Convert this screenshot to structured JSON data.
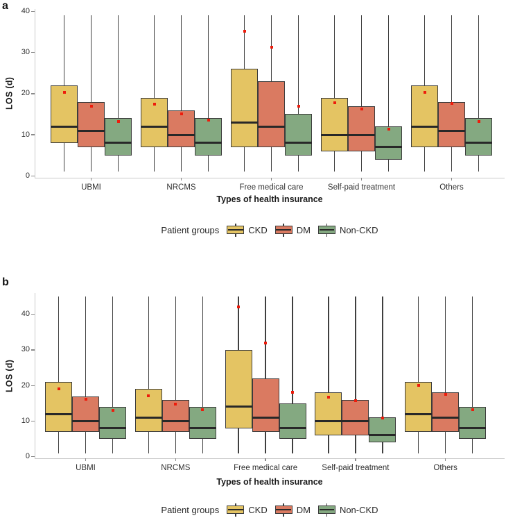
{
  "figure": {
    "panel_a_letter": "a",
    "panel_b_letter": "b",
    "legend": {
      "title": "Patient groups",
      "entries": [
        "CKD",
        "DM",
        "Non-CKD"
      ]
    },
    "colors": {
      "ckd": "#E4C463",
      "dm": "#DA7A61",
      "non_ckd": "#84A981",
      "box_border": "#3C3C3C",
      "median": "#282828",
      "whisker": "#3F3F3F",
      "mean_dot": "#ED1C0C",
      "axis_line": "#C9C9C9",
      "tick_mark": "#8A8A8A",
      "text": "#303030"
    }
  },
  "chart_data": [
    {
      "type": "boxplot",
      "panel": "a",
      "title": "",
      "ylabel": "LOS (d)",
      "xlabel": "Types of health insurance",
      "ylim": [
        0,
        40.6
      ],
      "yticks": [
        0,
        10,
        20,
        30,
        40
      ],
      "grid": false,
      "legend_position": "bottom",
      "legend_title": "Patient groups",
      "legend_entries": [
        "CKD",
        "DM",
        "Non-CKD"
      ],
      "categories": [
        "UBMI",
        "NRCMS",
        "Free medical care",
        "Self-paid treatment",
        "Others"
      ],
      "series": [
        {
          "name": "CKD",
          "color_key": "ckd",
          "boxes": [
            {
              "low": 1,
              "q1": 8,
              "med": 12,
              "q3": 22,
              "high": 39,
              "mean": 20.3
            },
            {
              "low": 1,
              "q1": 7,
              "med": 12,
              "q3": 19,
              "high": 39,
              "mean": 17.4
            },
            {
              "low": 1,
              "q1": 7,
              "med": 13,
              "q3": 26,
              "high": 39,
              "mean": 35.2
            },
            {
              "low": 1,
              "q1": 6,
              "med": 10,
              "q3": 19,
              "high": 39,
              "mean": 17.7
            },
            {
              "low": 1,
              "q1": 7,
              "med": 12,
              "q3": 22,
              "high": 39,
              "mean": 20.3
            }
          ]
        },
        {
          "name": "DM",
          "color_key": "dm",
          "boxes": [
            {
              "low": 1,
              "q1": 7,
              "med": 11,
              "q3": 18,
              "high": 39,
              "mean": 17.0
            },
            {
              "low": 1,
              "q1": 7,
              "med": 10,
              "q3": 16,
              "high": 39,
              "mean": 15.1
            },
            {
              "low": 1,
              "q1": 7,
              "med": 12,
              "q3": 23,
              "high": 39,
              "mean": 31.3
            },
            {
              "low": 1,
              "q1": 6,
              "med": 10,
              "q3": 17,
              "high": 39,
              "mean": 16.3
            },
            {
              "low": 1,
              "q1": 7,
              "med": 11,
              "q3": 18,
              "high": 39,
              "mean": 17.6
            }
          ]
        },
        {
          "name": "Non-CKD",
          "color_key": "non_ckd",
          "boxes": [
            {
              "low": 1,
              "q1": 5,
              "med": 8,
              "q3": 14,
              "high": 39,
              "mean": 13.3
            },
            {
              "low": 1,
              "q1": 5,
              "med": 8,
              "q3": 14,
              "high": 39,
              "mean": 13.5
            },
            {
              "low": 1,
              "q1": 5,
              "med": 8,
              "q3": 15,
              "high": 39,
              "mean": 16.9
            },
            {
              "low": 1,
              "q1": 4,
              "med": 7,
              "q3": 12,
              "high": 39,
              "mean": 11.4
            },
            {
              "low": 1,
              "q1": 5,
              "med": 8,
              "q3": 14,
              "high": 39,
              "mean": 13.2
            }
          ]
        }
      ]
    },
    {
      "type": "boxplot",
      "panel": "b",
      "title": "",
      "ylabel": "LOS (d)",
      "xlabel": "Types of health insurance",
      "ylim": [
        0,
        46
      ],
      "yticks": [
        0,
        10,
        20,
        30,
        40
      ],
      "grid": false,
      "legend_position": "bottom",
      "legend_title": "Patient groups",
      "legend_entries": [
        "CKD",
        "DM",
        "Non-CKD"
      ],
      "categories": [
        "UBMI",
        "NRCMS",
        "Free medical care",
        "Self-paid treatment",
        "Others"
      ],
      "series": [
        {
          "name": "CKD",
          "color_key": "ckd",
          "boxes": [
            {
              "low": 1,
              "q1": 7,
              "med": 12,
              "q3": 21,
              "high": 45,
              "mean": 19.1
            },
            {
              "low": 1,
              "q1": 7,
              "med": 11,
              "q3": 19,
              "high": 45,
              "mean": 17.1
            },
            {
              "low": 1,
              "q1": 8,
              "med": 14,
              "q3": 30,
              "high": 45,
              "mean": 42.0
            },
            {
              "low": 1,
              "q1": 6,
              "med": 10,
              "q3": 18,
              "high": 45,
              "mean": 16.8
            },
            {
              "low": 1,
              "q1": 7,
              "med": 12,
              "q3": 21,
              "high": 45,
              "mean": 20.0
            }
          ]
        },
        {
          "name": "DM",
          "color_key": "dm",
          "boxes": [
            {
              "low": 1,
              "q1": 7,
              "med": 10,
              "q3": 17,
              "high": 45,
              "mean": 16.1
            },
            {
              "low": 1,
              "q1": 7,
              "med": 10,
              "q3": 16,
              "high": 45,
              "mean": 14.7
            },
            {
              "low": 1,
              "q1": 7,
              "med": 11,
              "q3": 22,
              "high": 45,
              "mean": 31.9
            },
            {
              "low": 1,
              "q1": 6,
              "med": 10,
              "q3": 16,
              "high": 45,
              "mean": 15.8
            },
            {
              "low": 1,
              "q1": 7,
              "med": 11,
              "q3": 18,
              "high": 45,
              "mean": 17.5
            }
          ]
        },
        {
          "name": "Non-CKD",
          "color_key": "non_ckd",
          "boxes": [
            {
              "low": 1,
              "q1": 5,
              "med": 8,
              "q3": 14,
              "high": 45,
              "mean": 13.0
            },
            {
              "low": 1,
              "q1": 5,
              "med": 8,
              "q3": 14,
              "high": 45,
              "mean": 13.2
            },
            {
              "low": 1,
              "q1": 5,
              "med": 8,
              "q3": 15,
              "high": 45,
              "mean": 18.0
            },
            {
              "low": 1,
              "q1": 4,
              "med": 6,
              "q3": 11,
              "high": 45,
              "mean": 10.9
            },
            {
              "low": 1,
              "q1": 5,
              "med": 8,
              "q3": 14,
              "high": 45,
              "mean": 13.2
            }
          ]
        }
      ]
    }
  ]
}
